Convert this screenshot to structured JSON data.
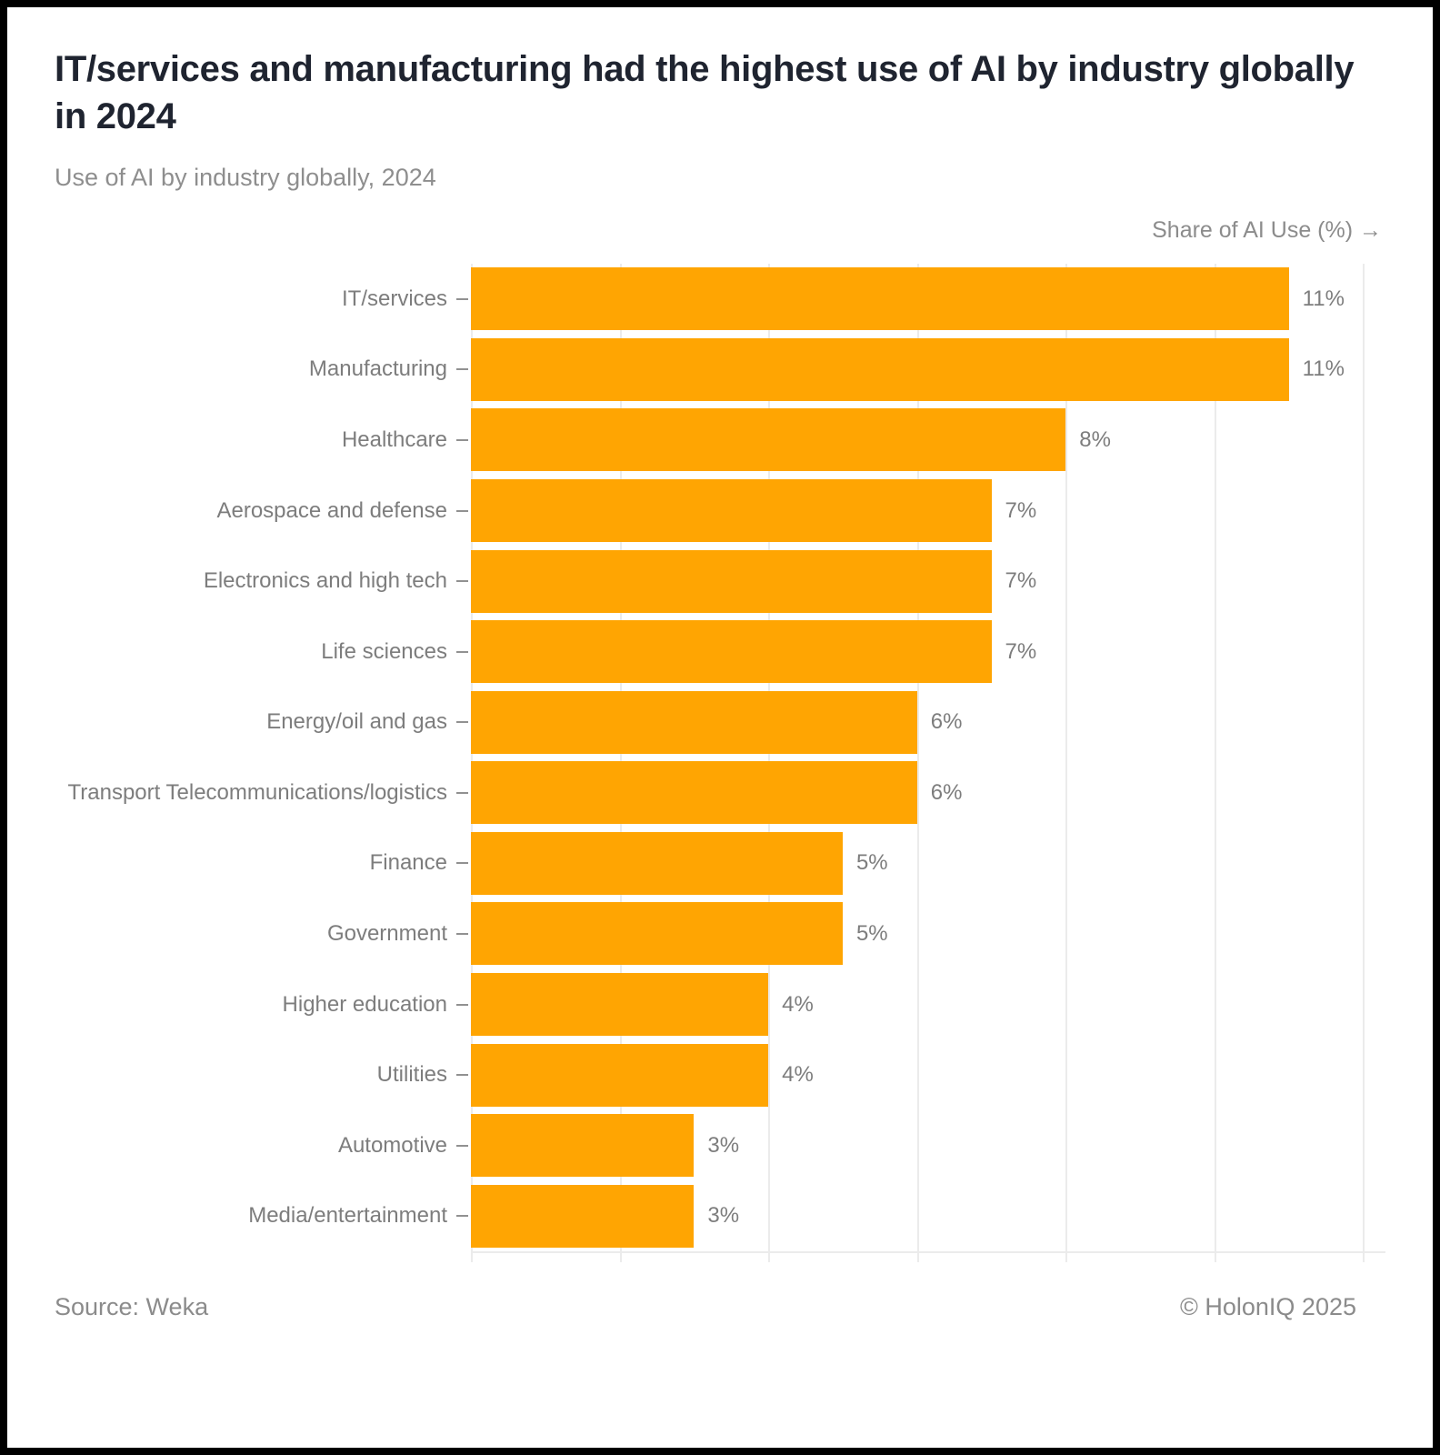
{
  "header": {
    "title": "IT/services and manufacturing had the highest use of AI by industry globally in 2024",
    "subtitle": "Use of AI by industry globally, 2024"
  },
  "axis": {
    "title": "Share of AI Use (%) →"
  },
  "chart_data": {
    "type": "bar",
    "orientation": "horizontal",
    "title": "Use of AI by industry globally, 2024",
    "xlabel": "Share of AI Use (%)",
    "ylabel": "",
    "categories": [
      "IT/services",
      "Manufacturing",
      "Healthcare",
      "Aerospace and defense",
      "Electronics and high tech",
      "Life sciences",
      "Energy/oil and gas",
      "Transport Telecommunications/logistics",
      "Finance",
      "Government",
      "Higher education",
      "Utilities",
      "Automotive",
      "Media/entertainment"
    ],
    "values": [
      11,
      11,
      8,
      7,
      7,
      7,
      6,
      6,
      5,
      5,
      4,
      4,
      3,
      3
    ],
    "value_suffix": "%",
    "xlim": [
      0,
      12.3
    ],
    "gridline_step": 2,
    "grid": true,
    "legend": "none",
    "bar_color": "#ffa502",
    "gridline_color": "#ebebeb",
    "tick_color": "#919191",
    "label_color": "#7d7d7d"
  },
  "footer": {
    "source": "Source: Weka",
    "copyright": "© HolonIQ 2025"
  }
}
